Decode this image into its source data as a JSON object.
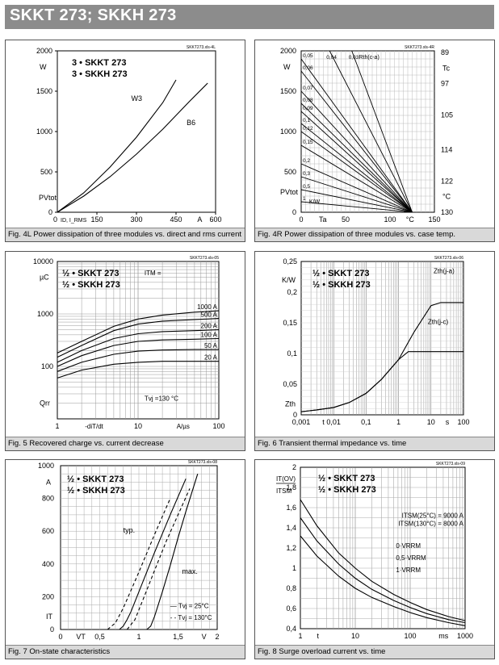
{
  "title": "SKKT 273; SKKH 273",
  "chart_data": [
    {
      "id": "fig4L",
      "type": "line",
      "file_tag": "SKKT273.xls-4L",
      "caption": "Fig. 4L Power dissipation of three modules vs. direct and rms current",
      "legend": [
        "3 • SKKT 273",
        "3 • SKKH 273"
      ],
      "xlim": [
        0,
        600
      ],
      "ylim": [
        0,
        2000
      ],
      "xticks": [
        {
          "v": 0,
          "t": "0"
        },
        {
          "v": 150,
          "t": "150"
        },
        {
          "v": 300,
          "t": "300"
        },
        {
          "v": 450,
          "t": "450"
        },
        {
          "v": 600,
          "t": "600"
        }
      ],
      "yticks": [
        {
          "v": 0,
          "t": "0"
        },
        {
          "v": 500,
          "t": "500"
        },
        {
          "v": 1000,
          "t": "1000"
        },
        {
          "v": 1500,
          "t": "1500"
        },
        {
          "v": 2000,
          "t": "2000"
        }
      ],
      "xlabel": "I_D, I_RMS",
      "xunit": "A",
      "ylabel": "P_Vtot",
      "yunit": "W",
      "series": [
        {
          "name": "W3",
          "x": [
            0,
            100,
            200,
            300,
            400,
            450
          ],
          "y": [
            0,
            240,
            560,
            930,
            1360,
            1640
          ]
        },
        {
          "name": "B6",
          "x": [
            0,
            100,
            200,
            300,
            400,
            500,
            570
          ],
          "y": [
            0,
            200,
            440,
            720,
            1030,
            1370,
            1600
          ]
        }
      ]
    },
    {
      "id": "fig4R",
      "type": "line",
      "file_tag": "SKKT273.xls-4R",
      "caption": "Fig. 4R Power dissipation of three modules vs. case temp.",
      "xlim": [
        0,
        150
      ],
      "ylim": [
        0,
        2000
      ],
      "xticks": [
        {
          "v": 0,
          "t": "0"
        },
        {
          "v": 50,
          "t": "50"
        },
        {
          "v": 100,
          "t": "100"
        },
        {
          "v": 150,
          "t": "150"
        }
      ],
      "yticks": [
        {
          "v": 0,
          "t": "0"
        },
        {
          "v": 500,
          "t": "500"
        },
        {
          "v": 1000,
          "t": "1000"
        },
        {
          "v": 1500,
          "t": "1500"
        },
        {
          "v": 2000,
          "t": "2000"
        }
      ],
      "tc_ticks": [
        {
          "v": 89,
          "t": "89"
        },
        {
          "v": 97,
          "t": "97"
        },
        {
          "v": 105,
          "t": "105"
        },
        {
          "v": 114,
          "t": "114"
        },
        {
          "v": 122,
          "t": "122"
        },
        {
          "v": 130,
          "t": "130"
        }
      ],
      "xlabel": "T_a",
      "xunit": "°C",
      "ylabel": "P_Vtot",
      "yunit": "W",
      "right_label": "T_c",
      "right_unit": "°C",
      "series_label": "R_th(c-a)",
      "rth_values": [
        "0,04",
        "0,03",
        "0,05",
        "0,06",
        "0,07",
        "0,08",
        "0,09",
        "0,1",
        "0,12",
        "0,15",
        "0,2",
        "0,3",
        "0,5",
        "1",
        "K/W"
      ],
      "line_endpoints_y": [
        2000,
        2000,
        1900,
        1750,
        1500,
        1350,
        1250,
        1100,
        1000,
        830,
        600,
        440,
        280,
        130,
        60
      ],
      "line_endpoints_x": [
        32,
        57,
        0,
        0,
        0,
        0,
        0,
        0,
        0,
        0,
        0,
        0,
        0,
        0,
        0
      ]
    },
    {
      "id": "fig5",
      "type": "line",
      "file_tag": "SKKT273.xls-05",
      "caption": "Fig. 5 Recovered charge vs. current decrease",
      "legend": [
        "½ • SKKT 273",
        "½ • SKKH 273"
      ],
      "xscale": "log",
      "yscale": "log",
      "xlim": [
        1,
        100
      ],
      "ylim": [
        10,
        10000
      ],
      "xticks": [
        {
          "v": 1,
          "t": "1"
        },
        {
          "v": 10,
          "t": "10"
        },
        {
          "v": 100,
          "t": "100"
        }
      ],
      "yticks": [
        {
          "v": 100,
          "t": "100"
        },
        {
          "v": 1000,
          "t": "1000"
        },
        {
          "v": 10000,
          "t": "10000"
        }
      ],
      "xlabel": "-di_T/dt",
      "xunit": "A/µs",
      "ylabel": "Q_rr",
      "yunit": "µC",
      "itm_label": "I_TM =",
      "tvj_label": "T_vj =130 °C",
      "series": [
        {
          "name": "1000 A",
          "x": [
            1,
            2,
            5,
            10,
            20,
            50,
            100
          ],
          "y": [
            180,
            300,
            580,
            800,
            950,
            1080,
            1150
          ]
        },
        {
          "name": "500 A",
          "x": [
            1,
            2,
            5,
            10,
            20,
            50,
            100
          ],
          "y": [
            150,
            250,
            480,
            640,
            730,
            780,
            820
          ]
        },
        {
          "name": "200 A",
          "x": [
            1,
            2,
            5,
            10,
            20,
            50,
            100
          ],
          "y": [
            120,
            200,
            340,
            420,
            460,
            480,
            500
          ]
        },
        {
          "name": "100 A",
          "x": [
            1,
            2,
            5,
            10,
            20,
            50,
            100
          ],
          "y": [
            100,
            160,
            250,
            300,
            320,
            330,
            340
          ]
        },
        {
          "name": "50 A",
          "x": [
            1,
            2,
            5,
            10,
            20,
            50,
            100
          ],
          "y": [
            80,
            120,
            170,
            195,
            205,
            210,
            210
          ]
        },
        {
          "name": "20 A",
          "x": [
            1,
            2,
            5,
            10,
            20,
            50,
            100
          ],
          "y": [
            60,
            85,
            110,
            120,
            125,
            125,
            125
          ]
        }
      ]
    },
    {
      "id": "fig6",
      "type": "line",
      "file_tag": "SKKT273.xls-06",
      "caption": "Fig. 6 Transient thermal impedance vs. time",
      "legend": [
        "½ • SKKT 273",
        "½ • SKKH 273"
      ],
      "xscale": "log",
      "xlim": [
        0.001,
        100
      ],
      "ylim": [
        0,
        0.25
      ],
      "xticks": [
        {
          "v": 0.001,
          "t": "0,001"
        },
        {
          "v": 0.01,
          "t": "0,01"
        },
        {
          "v": 0.1,
          "t": "0,1"
        },
        {
          "v": 1,
          "t": "1"
        },
        {
          "v": 10,
          "t": "10"
        },
        {
          "v": 100,
          "t": "100"
        }
      ],
      "yticks": [
        {
          "v": 0,
          "t": "0"
        },
        {
          "v": 0.05,
          "t": "0,05"
        },
        {
          "v": 0.1,
          "t": "0,1"
        },
        {
          "v": 0.15,
          "t": "0,15"
        },
        {
          "v": 0.2,
          "t": "0,2"
        },
        {
          "v": 0.25,
          "t": "0,25"
        }
      ],
      "xlabel": "t",
      "xunit": "s",
      "ylabel": "Z_th",
      "yunit": "K/W",
      "series": [
        {
          "name": "Z_th(j-a)",
          "x": [
            0.001,
            0.003,
            0.01,
            0.03,
            0.1,
            0.3,
            1,
            3,
            10,
            20,
            100
          ],
          "y": [
            0.005,
            0.008,
            0.012,
            0.02,
            0.035,
            0.058,
            0.09,
            0.135,
            0.178,
            0.183,
            0.183
          ]
        },
        {
          "name": "Z_th(j-c)",
          "x": [
            0.001,
            0.003,
            0.01,
            0.03,
            0.1,
            0.3,
            1,
            2,
            100
          ],
          "y": [
            0.005,
            0.008,
            0.012,
            0.02,
            0.035,
            0.058,
            0.09,
            0.103,
            0.103
          ]
        }
      ]
    },
    {
      "id": "fig7",
      "type": "line",
      "file_tag": "SKKT273.xls-08",
      "caption": "Fig. 7 On-state characteristics",
      "legend": [
        "½ • SKKT 273",
        "½ • SKKH 273"
      ],
      "xlim": [
        0,
        2
      ],
      "ylim": [
        0,
        1000
      ],
      "xticks": [
        {
          "v": 0,
          "t": "0"
        },
        {
          "v": 0.5,
          "t": "0,5"
        },
        {
          "v": 1,
          "t": "1"
        },
        {
          "v": 1.5,
          "t": "1,5"
        },
        {
          "v": 2,
          "t": "2"
        }
      ],
      "yticks": [
        {
          "v": 0,
          "t": "0"
        },
        {
          "v": 200,
          "t": "200"
        },
        {
          "v": 400,
          "t": "400"
        },
        {
          "v": 600,
          "t": "600"
        },
        {
          "v": 800,
          "t": "800"
        },
        {
          "v": 1000,
          "t": "1000"
        }
      ],
      "xlabel": "V_T",
      "xunit": "V",
      "ylabel": "I_T",
      "yunit": "A",
      "typ_label": "typ.",
      "max_label": "max.",
      "tvj_25": "T_vj = 25°C",
      "tvj_130": "T_vj = 130°C",
      "series": [
        {
          "name": "typ. 25°C",
          "style": "solid",
          "x": [
            0.75,
            0.8,
            0.85,
            0.9,
            1.0,
            1.2,
            1.4,
            1.6,
            1.8
          ],
          "y": [
            0,
            20,
            60,
            110,
            230,
            470,
            700,
            920,
            1100
          ]
        },
        {
          "name": "typ. 130°C",
          "style": "dashed",
          "x": [
            0.6,
            0.7,
            0.8,
            0.9,
            1.0,
            1.2,
            1.4,
            1.6
          ],
          "y": [
            0,
            40,
            130,
            240,
            350,
            580,
            800,
            1020
          ]
        },
        {
          "name": "max. 25°C",
          "style": "solid",
          "x": [
            1.1,
            1.15,
            1.2,
            1.3,
            1.4,
            1.5,
            1.6,
            1.75,
            1.85
          ],
          "y": [
            0,
            20,
            80,
            230,
            390,
            560,
            720,
            950,
            1100
          ]
        },
        {
          "name": "max. 130°C",
          "style": "dashed",
          "x": [
            0.85,
            0.95,
            1.05,
            1.2,
            1.35,
            1.5,
            1.65,
            1.8
          ],
          "y": [
            0,
            60,
            180,
            360,
            540,
            700,
            860,
            1010
          ]
        }
      ]
    },
    {
      "id": "fig8",
      "type": "line",
      "file_tag": "SKKT273.xls-09",
      "caption": "Fig. 8 Surge overload current vs. time",
      "legend": [
        "½ • SKKT 273",
        "½ • SKKH 273"
      ],
      "xscale": "log",
      "xlim": [
        1,
        1000
      ],
      "ylim": [
        0.4,
        2
      ],
      "xticks": [
        {
          "v": 1,
          "t": "1"
        },
        {
          "v": 10,
          "t": "10"
        },
        {
          "v": 100,
          "t": "100"
        },
        {
          "v": 1000,
          "t": "1000"
        }
      ],
      "yticks": [
        {
          "v": 0.4,
          "t": "0,4"
        },
        {
          "v": 0.6,
          "t": "0,6"
        },
        {
          "v": 0.8,
          "t": "0,8"
        },
        {
          "v": 1,
          "t": "1"
        },
        {
          "v": 1.2,
          "t": "1,2"
        },
        {
          "v": 1.4,
          "t": "1,4"
        },
        {
          "v": 1.6,
          "t": "1,6"
        },
        {
          "v": 1.8,
          "t": "1,8"
        },
        {
          "v": 2,
          "t": "2"
        }
      ],
      "xlabel": "t",
      "xunit": "ms",
      "ylabel": "I_T(OV) / I_TSM",
      "itsm25": "I_TSM(25°C) = 9000 A",
      "itsm130": "I_TSM(130°C) = 8000 A",
      "series": [
        {
          "name": "0·V_RRM",
          "x": [
            1,
            2,
            5,
            10,
            20,
            50,
            100,
            200,
            500,
            1000
          ],
          "y": [
            1.68,
            1.42,
            1.15,
            1.0,
            0.87,
            0.74,
            0.66,
            0.59,
            0.52,
            0.48
          ]
        },
        {
          "name": "0,5·V_RRM",
          "x": [
            1,
            2,
            5,
            10,
            20,
            50,
            100,
            200,
            500,
            1000
          ],
          "y": [
            1.5,
            1.27,
            1.04,
            0.9,
            0.79,
            0.68,
            0.61,
            0.55,
            0.49,
            0.46
          ]
        },
        {
          "name": "1·V_RRM",
          "x": [
            1,
            2,
            5,
            10,
            20,
            50,
            100,
            200,
            500,
            1000
          ],
          "y": [
            1.32,
            1.12,
            0.92,
            0.8,
            0.71,
            0.62,
            0.56,
            0.51,
            0.46,
            0.43
          ]
        }
      ]
    }
  ]
}
